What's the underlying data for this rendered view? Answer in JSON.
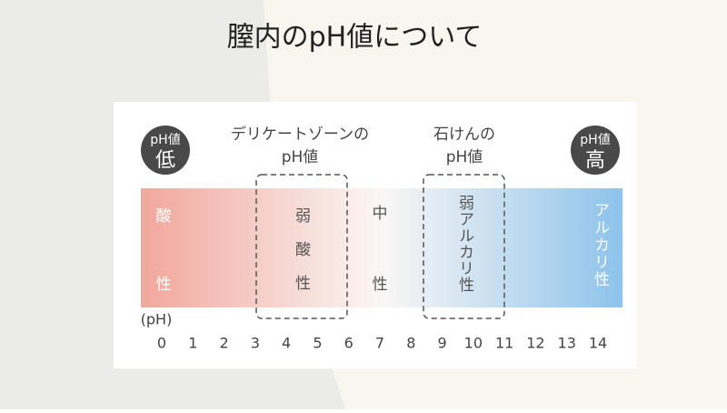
{
  "title": "膣内のpH値について",
  "low_badge": {
    "line1": "pH値",
    "line2": "低"
  },
  "high_badge": {
    "line1": "pH値",
    "line2": "高"
  },
  "delicate_label": {
    "line1": "デリケートゾーンの",
    "line2": "pH値"
  },
  "soap_label": {
    "line1": "石けんの",
    "line2": "pH値"
  },
  "zones": {
    "acid": [
      "酸",
      "性"
    ],
    "weak_acid": "弱酸性",
    "neutral": [
      "中",
      "性"
    ],
    "weak_alkaline": "弱アルカリ性",
    "alkaline": "アルカリ性"
  },
  "scale": {
    "unit": "(pH)",
    "ticks": [
      0,
      1,
      2,
      3,
      4,
      5,
      6,
      7,
      8,
      9,
      10,
      11,
      12,
      13,
      14
    ]
  }
}
